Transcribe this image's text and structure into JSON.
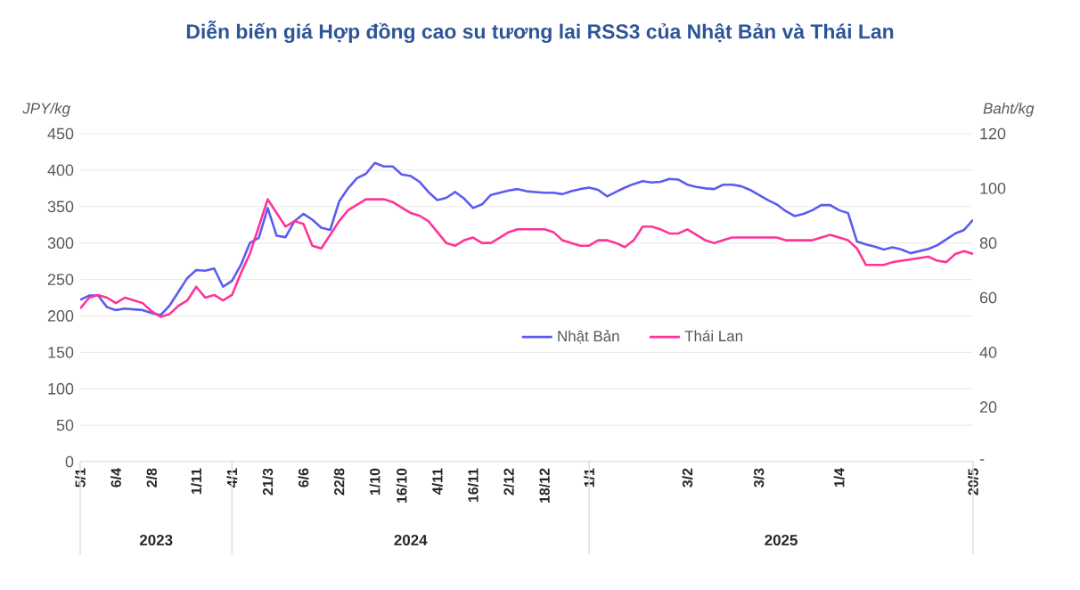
{
  "chart_data": {
    "type": "line",
    "title": "Diễn biến giá Hợp đồng cao su tương lai RSS3 của Nhật Bản và Thái Lan",
    "ylabel": "JPY/kg",
    "y2label": "Baht/kg",
    "categories": [
      "5/1",
      null,
      null,
      null,
      "6/4",
      null,
      null,
      null,
      "2/8",
      null,
      null,
      null,
      null,
      "1/11",
      null,
      null,
      null,
      "4/1",
      null,
      null,
      null,
      "21/3",
      null,
      null,
      null,
      "6/6",
      null,
      null,
      null,
      "22/8",
      null,
      null,
      null,
      "1/10",
      null,
      null,
      "16/10",
      null,
      null,
      null,
      "4/11",
      null,
      null,
      null,
      "16/11",
      null,
      null,
      null,
      "2/12",
      null,
      null,
      null,
      "18/12",
      null,
      null,
      null,
      null,
      "1/1",
      null,
      null,
      null,
      null,
      null,
      null,
      null,
      null,
      null,
      null,
      "3/2",
      null,
      null,
      null,
      null,
      null,
      null,
      null,
      "3/3",
      null,
      null,
      null,
      null,
      null,
      null,
      null,
      null,
      "1/4",
      null,
      null,
      null,
      null,
      null,
      null,
      null,
      null,
      null,
      null,
      null,
      null,
      null,
      null,
      "20/5"
    ],
    "annotations": [
      "2023",
      "2024",
      "2025"
    ],
    "ylim": [
      0,
      450
    ],
    "yticks": [
      0,
      50,
      100,
      150,
      200,
      250,
      300,
      350,
      400,
      450
    ],
    "y2lim": [
      0,
      120
    ],
    "y2ticks": [
      {
        "value": 0,
        "label": "-"
      },
      20,
      40,
      60,
      80,
      100,
      120
    ],
    "grid": "y",
    "legend": "center",
    "series": [
      {
        "name": "Nhật Bản",
        "color": "#5b5cf0",
        "values": [
          222,
          228,
          228,
          212,
          208,
          210,
          209,
          208,
          204,
          201,
          214,
          233,
          252,
          263,
          262,
          265,
          240,
          248,
          270,
          300,
          307,
          348,
          310,
          308,
          330,
          340,
          332,
          321,
          318,
          357,
          375,
          389,
          395,
          410,
          405,
          405,
          394,
          392,
          384,
          370,
          359,
          362,
          370,
          361,
          348,
          353,
          366,
          369,
          372,
          374,
          371,
          370,
          369,
          369,
          367,
          371,
          374,
          376,
          373,
          364,
          370,
          376,
          381,
          385,
          383,
          384,
          388,
          387,
          380,
          377,
          375,
          374,
          380,
          380,
          378,
          373,
          366,
          359,
          353,
          344,
          337,
          340,
          345,
          352,
          352,
          345,
          341,
          302,
          298,
          295,
          291,
          294,
          291,
          286,
          289,
          292,
          297,
          305,
          313,
          318,
          332
        ]
      },
      {
        "name": "Thái Lan",
        "color": "#ff3399",
        "axis": "y2",
        "values": [
          56,
          60,
          61,
          60,
          58,
          60,
          59,
          58,
          55,
          53,
          54,
          57,
          59,
          64,
          60,
          61,
          59,
          61,
          69,
          76,
          86,
          96,
          91,
          86,
          88,
          87,
          79,
          78,
          83,
          88,
          92,
          94,
          96,
          96,
          96,
          95,
          93,
          91,
          90,
          88,
          84,
          80,
          79,
          81,
          82,
          80,
          80,
          82,
          84,
          85,
          85,
          85,
          85,
          84,
          81,
          80,
          79,
          79,
          81,
          81,
          80,
          78.5,
          81,
          86,
          86,
          85,
          83.5,
          83.5,
          85,
          83,
          81,
          80,
          81,
          82,
          82,
          82,
          82,
          82,
          82,
          81,
          81,
          81,
          81,
          82,
          83,
          82,
          81,
          78,
          72,
          72,
          72,
          73,
          73.5,
          74,
          74.5,
          75,
          73.5,
          73,
          76,
          77,
          76
        ]
      }
    ]
  }
}
